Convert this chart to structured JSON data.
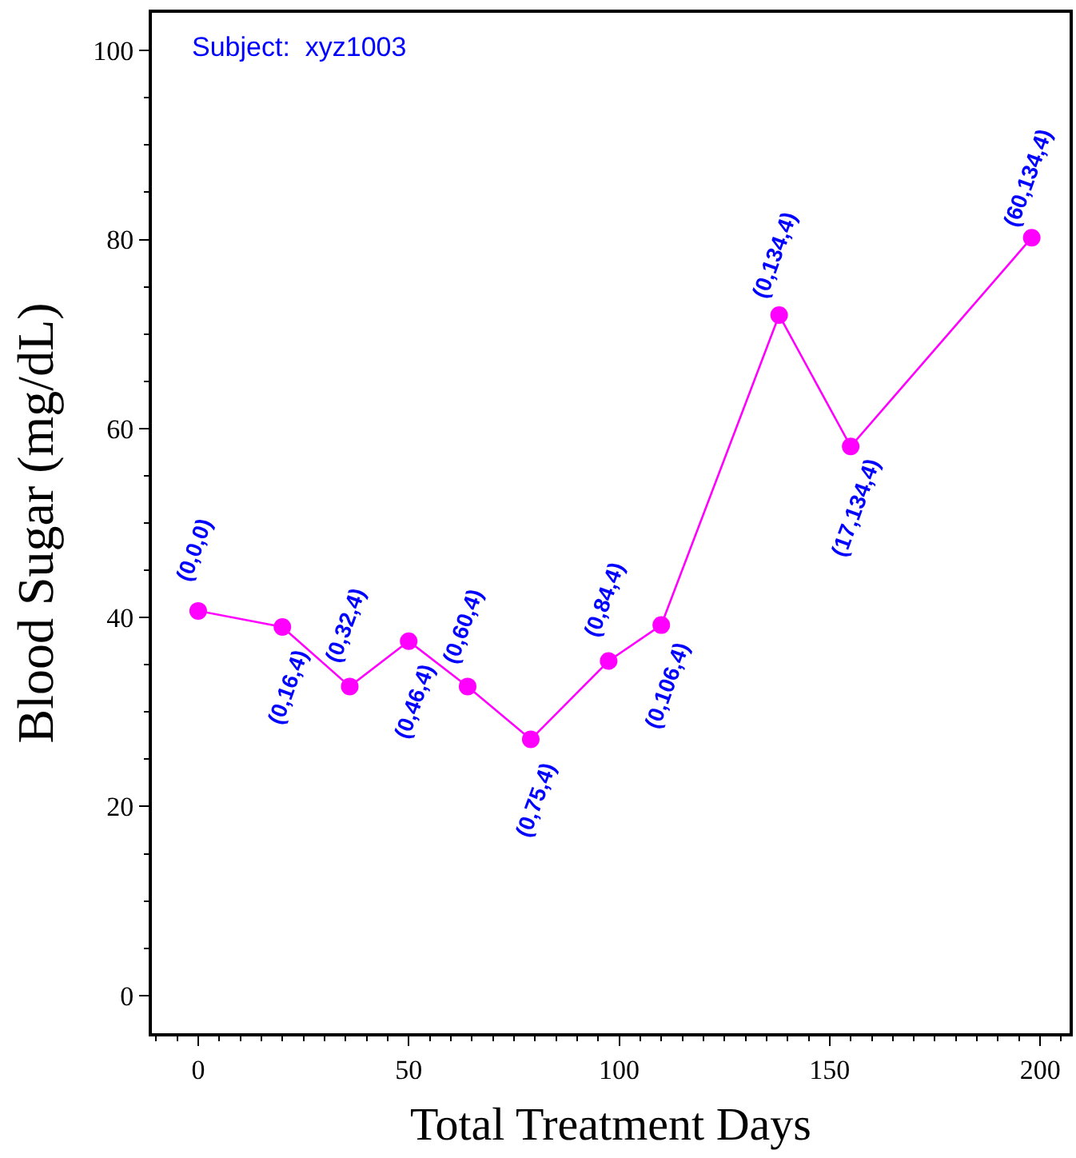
{
  "chart_data": {
    "type": "line",
    "xlabel": "Total Treatment Days",
    "ylabel": "Blood Sugar (mg/dL)",
    "annotations": [
      "Subject:  xyz1003"
    ],
    "x": [
      0,
      20,
      36,
      50,
      64,
      79,
      97.5,
      110,
      138,
      155,
      198
    ],
    "series": [
      {
        "color": "#ff00ff",
        "values": [
          40.7,
          39,
          32.7,
          37.5,
          32.7,
          27.1,
          35.4,
          39.2,
          72,
          58.1,
          80.2
        ],
        "value_labels": [
          "(0,0,0)",
          "(0,16,4)",
          "(0,32,4)",
          "(0,46,4)",
          "(0,60,4)",
          "(0,75,4)",
          "(0,84,4)",
          "(0,106,4)",
          "(0,134,4)",
          "(17,134,4)",
          "(60,134,4)"
        ]
      }
    ],
    "xlim": [
      -11,
      207
    ],
    "ylim": [
      -4,
      104
    ],
    "xticks": [
      0,
      50,
      100,
      150,
      200
    ],
    "yticks": [
      0,
      20,
      40,
      60,
      80,
      100
    ],
    "marker": "circle",
    "line_style": "solid"
  }
}
